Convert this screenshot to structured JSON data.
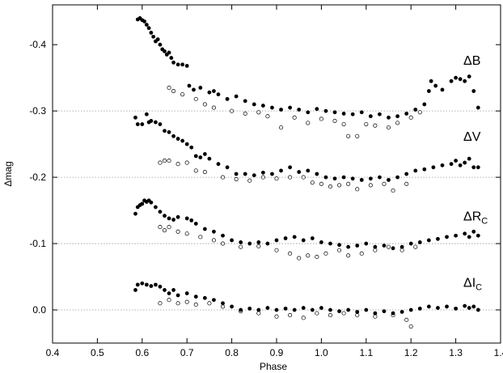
{
  "chart_data": {
    "type": "scatter",
    "xlabel": "Phase",
    "ylabel": "Δmag",
    "xlim": [
      0.4,
      1.4
    ],
    "ylim": [
      0.05,
      -0.46
    ],
    "y_inverted": true,
    "x_ticks": [
      "0.4",
      "0.5",
      "0.6",
      "0.7",
      "0.8",
      "0.9",
      "1.0",
      "1.1",
      "1.2",
      "1.3",
      "1.4"
    ],
    "y_ticks": [
      "-0.4",
      "-0.3",
      "-0.2",
      "-0.1",
      "0.0"
    ],
    "reference_lines": [
      -0.3,
      -0.2,
      -0.1,
      0.0
    ],
    "marker_styles": {
      "filled": "#000000",
      "open": "#ffffff"
    },
    "series": [
      {
        "name": "ΔB",
        "label_main": "ΔB",
        "label_sub": "",
        "offset": -0.3,
        "filled_points": [
          [
            0.59,
            -0.438
          ],
          [
            0.595,
            -0.44
          ],
          [
            0.6,
            -0.437
          ],
          [
            0.605,
            -0.435
          ],
          [
            0.61,
            -0.43
          ],
          [
            0.615,
            -0.425
          ],
          [
            0.62,
            -0.418
          ],
          [
            0.625,
            -0.412
          ],
          [
            0.63,
            -0.405
          ],
          [
            0.635,
            -0.408
          ],
          [
            0.64,
            -0.4
          ],
          [
            0.645,
            -0.393
          ],
          [
            0.65,
            -0.39
          ],
          [
            0.655,
            -0.385
          ],
          [
            0.66,
            -0.388
          ],
          [
            0.665,
            -0.38
          ],
          [
            0.67,
            -0.373
          ],
          [
            0.68,
            -0.37
          ],
          [
            0.69,
            -0.37
          ],
          [
            0.7,
            -0.368
          ],
          [
            0.705,
            -0.338
          ],
          [
            0.715,
            -0.332
          ],
          [
            0.73,
            -0.335
          ],
          [
            0.75,
            -0.328
          ],
          [
            0.76,
            -0.33
          ],
          [
            0.77,
            -0.325
          ],
          [
            0.79,
            -0.318
          ],
          [
            0.81,
            -0.322
          ],
          [
            0.83,
            -0.315
          ],
          [
            0.85,
            -0.31
          ],
          [
            0.87,
            -0.308
          ],
          [
            0.89,
            -0.305
          ],
          [
            0.91,
            -0.302
          ],
          [
            0.93,
            -0.305
          ],
          [
            0.95,
            -0.302
          ],
          [
            0.97,
            -0.298
          ],
          [
            0.99,
            -0.303
          ],
          [
            1.01,
            -0.3
          ],
          [
            1.03,
            -0.298
          ],
          [
            1.05,
            -0.296
          ],
          [
            1.07,
            -0.295
          ],
          [
            1.09,
            -0.298
          ],
          [
            1.11,
            -0.292
          ],
          [
            1.13,
            -0.295
          ],
          [
            1.15,
            -0.29
          ],
          [
            1.17,
            -0.292
          ],
          [
            1.19,
            -0.296
          ],
          [
            1.21,
            -0.302
          ],
          [
            1.23,
            -0.31
          ],
          [
            1.24,
            -0.33
          ],
          [
            1.245,
            -0.345
          ],
          [
            1.255,
            -0.338
          ],
          [
            1.27,
            -0.332
          ],
          [
            1.29,
            -0.345
          ],
          [
            1.3,
            -0.35
          ],
          [
            1.31,
            -0.348
          ],
          [
            1.32,
            -0.345
          ],
          [
            1.33,
            -0.352
          ],
          [
            1.34,
            -0.33
          ],
          [
            1.35,
            -0.305
          ]
        ],
        "open_points": [
          [
            0.66,
            -0.335
          ],
          [
            0.67,
            -0.33
          ],
          [
            0.69,
            -0.325
          ],
          [
            0.72,
            -0.318
          ],
          [
            0.74,
            -0.31
          ],
          [
            0.76,
            -0.305
          ],
          [
            0.8,
            -0.3
          ],
          [
            0.83,
            -0.296
          ],
          [
            0.86,
            -0.298
          ],
          [
            0.88,
            -0.292
          ],
          [
            0.91,
            -0.275
          ],
          [
            0.94,
            -0.29
          ],
          [
            0.97,
            -0.282
          ],
          [
            1.0,
            -0.288
          ],
          [
            1.03,
            -0.285
          ],
          [
            1.05,
            -0.28
          ],
          [
            1.06,
            -0.262
          ],
          [
            1.08,
            -0.262
          ],
          [
            1.1,
            -0.28
          ],
          [
            1.12,
            -0.278
          ],
          [
            1.15,
            -0.275
          ],
          [
            1.17,
            -0.282
          ],
          [
            1.2,
            -0.29
          ],
          [
            1.22,
            -0.298
          ]
        ]
      },
      {
        "name": "ΔV",
        "label_main": "ΔV",
        "label_sub": "",
        "offset": -0.2,
        "filled_points": [
          [
            0.585,
            -0.29
          ],
          [
            0.59,
            -0.28
          ],
          [
            0.6,
            -0.28
          ],
          [
            0.61,
            -0.295
          ],
          [
            0.615,
            -0.283
          ],
          [
            0.62,
            -0.285
          ],
          [
            0.63,
            -0.283
          ],
          [
            0.64,
            -0.28
          ],
          [
            0.65,
            -0.27
          ],
          [
            0.66,
            -0.268
          ],
          [
            0.67,
            -0.262
          ],
          [
            0.68,
            -0.258
          ],
          [
            0.69,
            -0.255
          ],
          [
            0.7,
            -0.25
          ],
          [
            0.71,
            -0.245
          ],
          [
            0.72,
            -0.232
          ],
          [
            0.73,
            -0.23
          ],
          [
            0.74,
            -0.235
          ],
          [
            0.75,
            -0.228
          ],
          [
            0.77,
            -0.22
          ],
          [
            0.79,
            -0.215
          ],
          [
            0.81,
            -0.205
          ],
          [
            0.83,
            -0.205
          ],
          [
            0.85,
            -0.203
          ],
          [
            0.87,
            -0.207
          ],
          [
            0.89,
            -0.205
          ],
          [
            0.91,
            -0.21
          ],
          [
            0.93,
            -0.215
          ],
          [
            0.95,
            -0.208
          ],
          [
            0.97,
            -0.21
          ],
          [
            0.99,
            -0.205
          ],
          [
            1.01,
            -0.2
          ],
          [
            1.03,
            -0.198
          ],
          [
            1.05,
            -0.2
          ],
          [
            1.07,
            -0.198
          ],
          [
            1.09,
            -0.196
          ],
          [
            1.11,
            -0.198
          ],
          [
            1.13,
            -0.2
          ],
          [
            1.15,
            -0.196
          ],
          [
            1.17,
            -0.2
          ],
          [
            1.19,
            -0.205
          ],
          [
            1.21,
            -0.21
          ],
          [
            1.23,
            -0.212
          ],
          [
            1.25,
            -0.215
          ],
          [
            1.27,
            -0.218
          ],
          [
            1.29,
            -0.22
          ],
          [
            1.3,
            -0.225
          ],
          [
            1.31,
            -0.218
          ],
          [
            1.32,
            -0.222
          ],
          [
            1.33,
            -0.228
          ],
          [
            1.34,
            -0.215
          ],
          [
            1.35,
            -0.215
          ]
        ],
        "open_points": [
          [
            0.64,
            -0.222
          ],
          [
            0.65,
            -0.225
          ],
          [
            0.66,
            -0.225
          ],
          [
            0.68,
            -0.22
          ],
          [
            0.7,
            -0.222
          ],
          [
            0.72,
            -0.21
          ],
          [
            0.74,
            -0.208
          ],
          [
            0.78,
            -0.2
          ],
          [
            0.81,
            -0.197
          ],
          [
            0.84,
            -0.195
          ],
          [
            0.87,
            -0.2
          ],
          [
            0.9,
            -0.198
          ],
          [
            0.93,
            -0.2
          ],
          [
            0.96,
            -0.2
          ],
          [
            0.98,
            -0.192
          ],
          [
            1.0,
            -0.19
          ],
          [
            1.02,
            -0.186
          ],
          [
            1.04,
            -0.188
          ],
          [
            1.06,
            -0.19
          ],
          [
            1.08,
            -0.182
          ],
          [
            1.11,
            -0.188
          ],
          [
            1.14,
            -0.19
          ],
          [
            1.16,
            -0.18
          ],
          [
            1.19,
            -0.19
          ]
        ]
      },
      {
        "name": "ΔR_C",
        "label_main": "ΔR",
        "label_sub": "C",
        "offset": -0.1,
        "filled_points": [
          [
            0.585,
            -0.145
          ],
          [
            0.59,
            -0.155
          ],
          [
            0.595,
            -0.158
          ],
          [
            0.6,
            -0.16
          ],
          [
            0.605,
            -0.165
          ],
          [
            0.61,
            -0.163
          ],
          [
            0.615,
            -0.165
          ],
          [
            0.62,
            -0.162
          ],
          [
            0.63,
            -0.155
          ],
          [
            0.64,
            -0.148
          ],
          [
            0.65,
            -0.142
          ],
          [
            0.66,
            -0.138
          ],
          [
            0.67,
            -0.136
          ],
          [
            0.68,
            -0.14
          ],
          [
            0.7,
            -0.138
          ],
          [
            0.71,
            -0.135
          ],
          [
            0.72,
            -0.13
          ],
          [
            0.74,
            -0.122
          ],
          [
            0.76,
            -0.118
          ],
          [
            0.78,
            -0.112
          ],
          [
            0.8,
            -0.105
          ],
          [
            0.82,
            -0.102
          ],
          [
            0.84,
            -0.1
          ],
          [
            0.86,
            -0.102
          ],
          [
            0.88,
            -0.1
          ],
          [
            0.9,
            -0.105
          ],
          [
            0.92,
            -0.108
          ],
          [
            0.94,
            -0.11
          ],
          [
            0.96,
            -0.105
          ],
          [
            0.98,
            -0.108
          ],
          [
            1.0,
            -0.102
          ],
          [
            1.02,
            -0.1
          ],
          [
            1.04,
            -0.098
          ],
          [
            1.06,
            -0.095
          ],
          [
            1.08,
            -0.097
          ],
          [
            1.1,
            -0.1
          ],
          [
            1.12,
            -0.095
          ],
          [
            1.14,
            -0.097
          ],
          [
            1.16,
            -0.093
          ],
          [
            1.18,
            -0.095
          ],
          [
            1.2,
            -0.1
          ],
          [
            1.22,
            -0.102
          ],
          [
            1.24,
            -0.105
          ],
          [
            1.26,
            -0.107
          ],
          [
            1.28,
            -0.11
          ],
          [
            1.3,
            -0.112
          ],
          [
            1.32,
            -0.115
          ],
          [
            1.33,
            -0.11
          ],
          [
            1.34,
            -0.118
          ],
          [
            1.35,
            -0.112
          ]
        ],
        "open_points": [
          [
            0.64,
            -0.125
          ],
          [
            0.65,
            -0.12
          ],
          [
            0.66,
            -0.125
          ],
          [
            0.68,
            -0.118
          ],
          [
            0.7,
            -0.115
          ],
          [
            0.73,
            -0.11
          ],
          [
            0.76,
            -0.105
          ],
          [
            0.78,
            -0.1
          ],
          [
            0.82,
            -0.095
          ],
          [
            0.86,
            -0.096
          ],
          [
            0.9,
            -0.09
          ],
          [
            0.93,
            -0.085
          ],
          [
            0.95,
            -0.078
          ],
          [
            0.97,
            -0.082
          ],
          [
            0.99,
            -0.08
          ],
          [
            1.01,
            -0.085
          ],
          [
            1.04,
            -0.09
          ],
          [
            1.06,
            -0.082
          ],
          [
            1.09,
            -0.085
          ],
          [
            1.12,
            -0.09
          ],
          [
            1.15,
            -0.095
          ],
          [
            1.18,
            -0.09
          ],
          [
            1.21,
            -0.095
          ]
        ]
      },
      {
        "name": "ΔI_C",
        "label_main": "ΔI",
        "label_sub": "C",
        "offset": 0.0,
        "filled_points": [
          [
            0.585,
            -0.03
          ],
          [
            0.59,
            -0.038
          ],
          [
            0.6,
            -0.04
          ],
          [
            0.61,
            -0.038
          ],
          [
            0.62,
            -0.036
          ],
          [
            0.63,
            -0.038
          ],
          [
            0.64,
            -0.035
          ],
          [
            0.65,
            -0.03
          ],
          [
            0.66,
            -0.025
          ],
          [
            0.67,
            -0.03
          ],
          [
            0.68,
            -0.022
          ],
          [
            0.7,
            -0.025
          ],
          [
            0.72,
            -0.02
          ],
          [
            0.74,
            -0.018
          ],
          [
            0.76,
            -0.015
          ],
          [
            0.78,
            -0.01
          ],
          [
            0.8,
            -0.005
          ],
          [
            0.82,
            0.0
          ],
          [
            0.84,
            -0.002
          ],
          [
            0.86,
            0.0
          ],
          [
            0.88,
            -0.003
          ],
          [
            0.9,
            0.0
          ],
          [
            0.92,
            -0.002
          ],
          [
            0.94,
            0.0
          ],
          [
            0.96,
            -0.003
          ],
          [
            0.98,
            0.0
          ],
          [
            1.0,
            -0.003
          ],
          [
            1.02,
            0.0
          ],
          [
            1.04,
            0.002
          ],
          [
            1.06,
            0.0
          ],
          [
            1.08,
            0.003
          ],
          [
            1.1,
            0.0
          ],
          [
            1.12,
            0.005
          ],
          [
            1.14,
            0.002
          ],
          [
            1.16,
            0.005
          ],
          [
            1.18,
            0.003
          ],
          [
            1.2,
            0.0
          ],
          [
            1.22,
            -0.002
          ],
          [
            1.24,
            -0.005
          ],
          [
            1.26,
            -0.003
          ],
          [
            1.28,
            -0.005
          ],
          [
            1.3,
            -0.002
          ],
          [
            1.32,
            -0.006
          ],
          [
            1.33,
            -0.003
          ],
          [
            1.34,
            -0.005
          ],
          [
            1.35,
            0.0
          ]
        ],
        "open_points": [
          [
            0.64,
            -0.01
          ],
          [
            0.66,
            -0.015
          ],
          [
            0.68,
            -0.01
          ],
          [
            0.7,
            -0.012
          ],
          [
            0.72,
            -0.008
          ],
          [
            0.75,
            -0.01
          ],
          [
            0.78,
            -0.005
          ],
          [
            0.82,
            0.002
          ],
          [
            0.86,
            0.005
          ],
          [
            0.9,
            0.01
          ],
          [
            0.93,
            0.008
          ],
          [
            0.96,
            0.012
          ],
          [
            0.99,
            0.005
          ],
          [
            1.02,
            0.008
          ],
          [
            1.05,
            0.005
          ],
          [
            1.08,
            0.008
          ],
          [
            1.12,
            0.01
          ],
          [
            1.16,
            0.008
          ],
          [
            1.19,
            0.015
          ],
          [
            1.2,
            0.025
          ]
        ]
      }
    ]
  }
}
